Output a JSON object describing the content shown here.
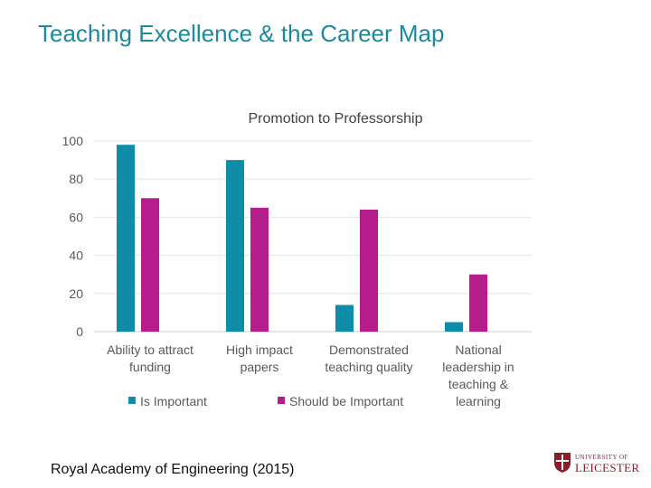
{
  "slide": {
    "title": "Teaching Excellence & the Career Map",
    "source": "Royal Academy of Engineering (2015)",
    "logo": {
      "line1": "UNIVERSITY OF",
      "line2": "LEICESTER",
      "color": "#8a1c2b"
    }
  },
  "chart_data": {
    "type": "bar",
    "title": "Promotion to Professorship",
    "categories": [
      [
        "Ability to attract",
        "funding"
      ],
      [
        "High impact",
        "papers"
      ],
      [
        "Demonstrated",
        "teaching quality"
      ],
      [
        "National",
        "leadership in",
        "teaching &",
        "learning"
      ]
    ],
    "series": [
      {
        "name": "Is Important",
        "values": [
          98,
          90,
          14,
          5
        ],
        "color": "#0e8ca8"
      },
      {
        "name": "Should be Important",
        "values": [
          70,
          65,
          64,
          30
        ],
        "color": "#b51c8c"
      }
    ],
    "ylim": [
      0,
      100
    ],
    "yticks": [
      0,
      20,
      40,
      60,
      80,
      100
    ],
    "grid": true,
    "legend_position": "bottom"
  }
}
